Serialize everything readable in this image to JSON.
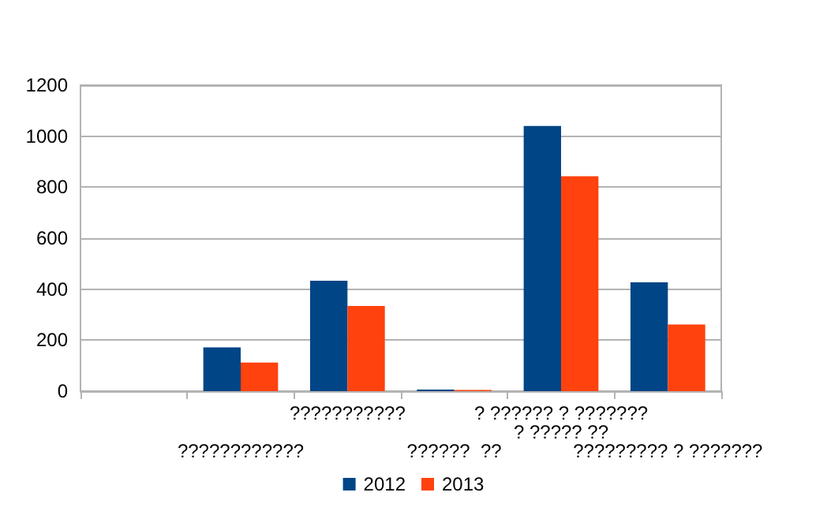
{
  "chart_data": {
    "type": "bar",
    "categories": [
      null,
      "????????????",
      "???????????",
      "??????  ??",
      "? ?????? ? ???????\n? ????? ??",
      "????????? ? ???????"
    ],
    "series": [
      {
        "name": "2012",
        "color": "#004586",
        "values": [
          null,
          172,
          433,
          6,
          1040,
          427
        ]
      },
      {
        "name": "2013",
        "color": "#ff420e",
        "values": [
          null,
          112,
          334,
          5,
          843,
          261
        ]
      }
    ],
    "ylim": [
      0,
      1200
    ],
    "yticks": [
      0,
      200,
      400,
      600,
      800,
      1000,
      1200
    ],
    "grid": "y",
    "legend": "bottom"
  }
}
